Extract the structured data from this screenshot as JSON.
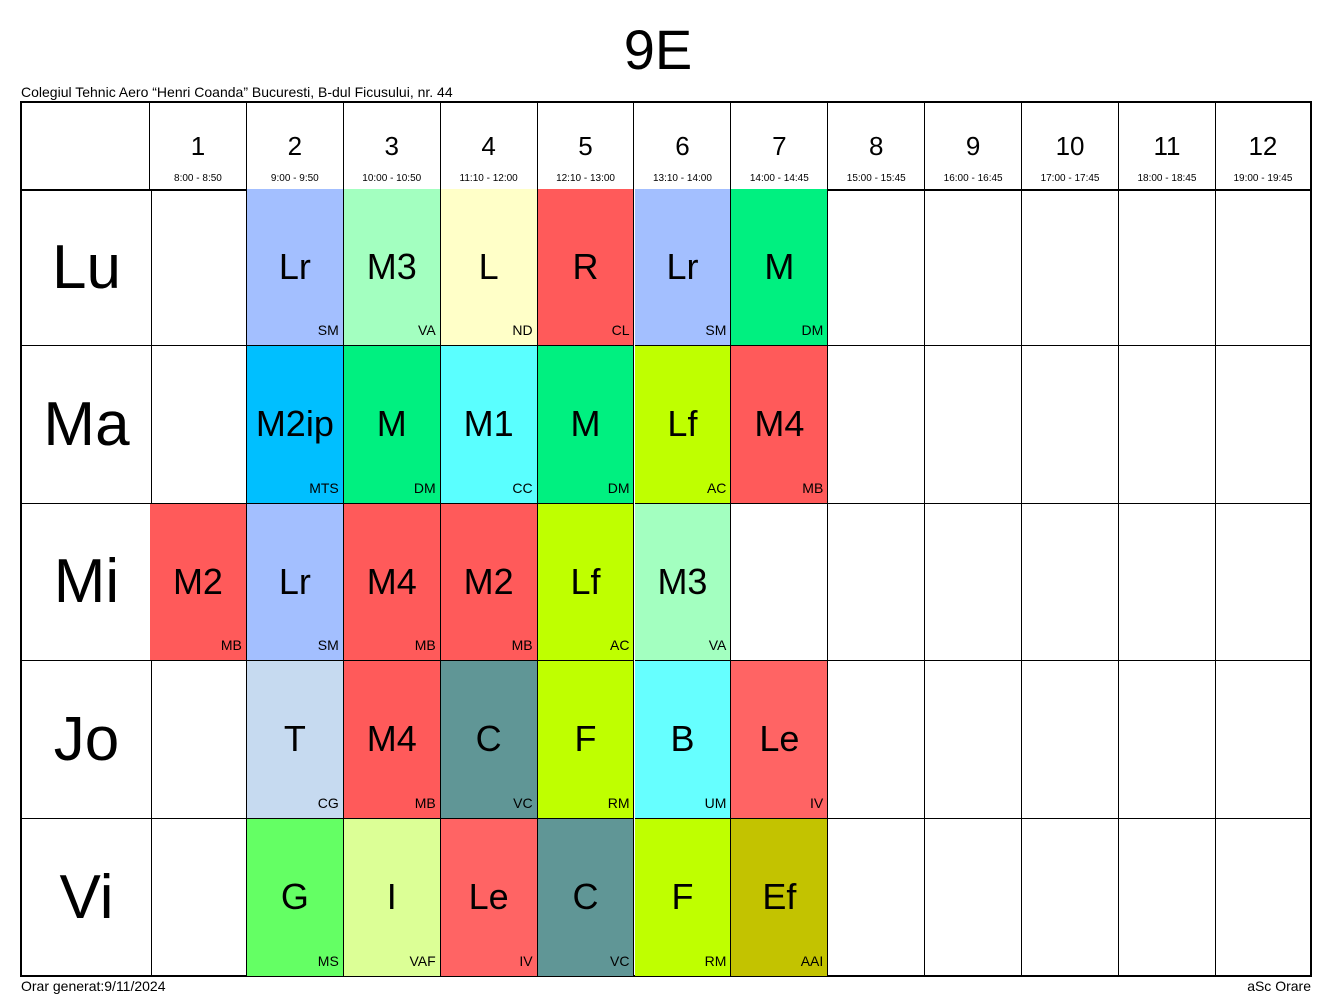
{
  "title": "9E",
  "school": "Colegiul Tehnic Aero “Henri Coanda” Bucuresti, B-dul Ficusului, nr. 44",
  "footer_left": "Orar generat:9/11/2024",
  "footer_right": "aSc Orare",
  "periods": [
    {
      "num": "1",
      "time": "8:00 - 8:50"
    },
    {
      "num": "2",
      "time": "9:00 - 9:50"
    },
    {
      "num": "3",
      "time": "10:00 - 10:50"
    },
    {
      "num": "4",
      "time": "11:10 - 12:00"
    },
    {
      "num": "5",
      "time": "12:10 - 13:00"
    },
    {
      "num": "6",
      "time": "13:10 - 14:00"
    },
    {
      "num": "7",
      "time": "14:00 - 14:45"
    },
    {
      "num": "8",
      "time": "15:00 - 15:45"
    },
    {
      "num": "9",
      "time": "16:00 - 16:45"
    },
    {
      "num": "10",
      "time": "17:00 - 17:45"
    },
    {
      "num": "11",
      "time": "18:00 - 18:45"
    },
    {
      "num": "12",
      "time": "19:00 - 19:45"
    }
  ],
  "days": [
    {
      "name": "Lu",
      "lessons": [
        null,
        {
          "subject": "Lr",
          "teacher": "SM",
          "color": "#a3bfff"
        },
        {
          "subject": "M3",
          "teacher": "VA",
          "color": "#a3ffc0"
        },
        {
          "subject": "L",
          "teacher": "ND",
          "color": "#ffffc8"
        },
        {
          "subject": "R",
          "teacher": "CL",
          "color": "#ff5a5a"
        },
        {
          "subject": "Lr",
          "teacher": "SM",
          "color": "#a3bfff"
        },
        {
          "subject": "M",
          "teacher": "DM",
          "color": "#00f080"
        },
        null,
        null,
        null,
        null,
        null
      ]
    },
    {
      "name": "Ma",
      "lessons": [
        null,
        {
          "subject": "M2ip",
          "teacher": "MTS",
          "color": "#00bfff"
        },
        {
          "subject": "M",
          "teacher": "DM",
          "color": "#00f080"
        },
        {
          "subject": "M1",
          "teacher": "CC",
          "color": "#5affff"
        },
        {
          "subject": "M",
          "teacher": "DM",
          "color": "#00f080"
        },
        {
          "subject": "Lf",
          "teacher": "AC",
          "color": "#bfff00"
        },
        {
          "subject": "M4",
          "teacher": "MB",
          "color": "#ff5a5a"
        },
        null,
        null,
        null,
        null,
        null
      ]
    },
    {
      "name": "Mi",
      "lessons": [
        {
          "subject": "M2",
          "teacher": "MB",
          "color": "#ff5a5a"
        },
        {
          "subject": "Lr",
          "teacher": "SM",
          "color": "#a3bfff"
        },
        {
          "subject": "M4",
          "teacher": "MB",
          "color": "#ff5a5a"
        },
        {
          "subject": "M2",
          "teacher": "MB",
          "color": "#ff5a5a"
        },
        {
          "subject": "Lf",
          "teacher": "AC",
          "color": "#bfff00"
        },
        {
          "subject": "M3",
          "teacher": "VA",
          "color": "#a3ffc0"
        },
        null,
        null,
        null,
        null,
        null,
        null
      ]
    },
    {
      "name": "Jo",
      "lessons": [
        null,
        {
          "subject": "T",
          "teacher": "CG",
          "color": "#c6daf0"
        },
        {
          "subject": "M4",
          "teacher": "MB",
          "color": "#ff5a5a"
        },
        {
          "subject": "C",
          "teacher": "VC",
          "color": "#609696"
        },
        {
          "subject": "F",
          "teacher": "RM",
          "color": "#bfff00"
        },
        {
          "subject": "B",
          "teacher": "UM",
          "color": "#66ffff"
        },
        {
          "subject": "Le",
          "teacher": "IV",
          "color": "#ff6464"
        },
        null,
        null,
        null,
        null,
        null
      ]
    },
    {
      "name": "Vi",
      "lessons": [
        null,
        {
          "subject": "G",
          "teacher": "MS",
          "color": "#64ff64"
        },
        {
          "subject": "I",
          "teacher": "VAF",
          "color": "#dcff96"
        },
        {
          "subject": "Le",
          "teacher": "IV",
          "color": "#ff6464"
        },
        {
          "subject": "C",
          "teacher": "VC",
          "color": "#609696"
        },
        {
          "subject": "F",
          "teacher": "RM",
          "color": "#bfff00"
        },
        {
          "subject": "Ef",
          "teacher": "AAI",
          "color": "#c3c300"
        },
        null,
        null,
        null,
        null,
        null
      ]
    }
  ]
}
